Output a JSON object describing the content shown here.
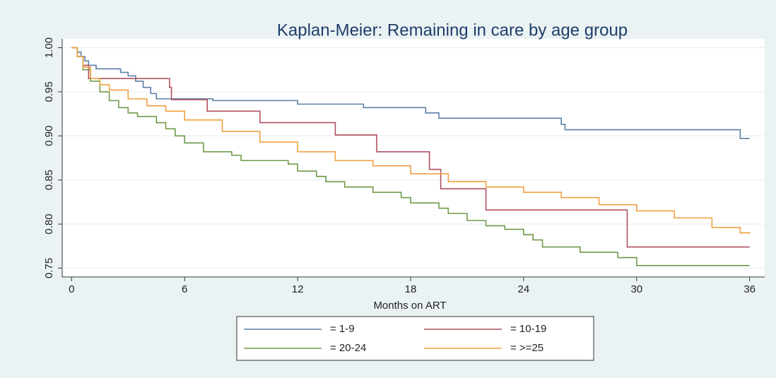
{
  "chart_data": {
    "type": "line",
    "step": true,
    "title": "Kaplan-Meier: Remaining in care by age group",
    "x_label": "Months on ART",
    "xlim": [
      -0.5,
      36.8
    ],
    "xticks": [
      0,
      6,
      12,
      18,
      24,
      30,
      36
    ],
    "ylim": [
      0.74,
      1.01
    ],
    "yticks": [
      0.75,
      {
        "value": 0.8,
        "label": "0.80"
      },
      0.85,
      {
        "value": 0.9,
        "label": "0.90"
      },
      0.95,
      {
        "value": 1,
        "label": "1.00"
      }
    ],
    "grid": true,
    "series": [
      {
        "name": "= 1-9",
        "color": "#5b7fa6",
        "x": [
          0,
          0.3,
          0.5,
          0.7,
          0.9,
          1.3,
          2.6,
          3,
          3.4,
          3.8,
          4.2,
          4.5,
          7.5,
          12,
          15.5,
          18.8,
          19.5,
          26,
          26.2,
          35.5,
          36
        ],
        "values": [
          1,
          0.995,
          0.99,
          0.985,
          0.98,
          0.976,
          0.972,
          0.968,
          0.962,
          0.955,
          0.948,
          0.942,
          0.94,
          0.936,
          0.932,
          0.926,
          0.92,
          0.913,
          0.907,
          0.897,
          0.897
        ]
      },
      {
        "name": "= 10-19",
        "color": "#b0505e",
        "x": [
          0,
          0.3,
          0.6,
          0.9,
          5.2,
          5.3,
          7.2,
          10,
          14,
          16.2,
          19,
          19.6,
          22,
          29.5,
          36
        ],
        "values": [
          1,
          0.99,
          0.98,
          0.965,
          0.955,
          0.941,
          0.928,
          0.915,
          0.901,
          0.882,
          0.862,
          0.84,
          0.816,
          0.774,
          0.774
        ]
      },
      {
        "name": "= 20-24",
        "color": "#6e9a4a",
        "x": [
          0,
          0.3,
          0.6,
          1,
          1.5,
          2,
          2.5,
          3,
          3.5,
          4.5,
          5,
          5.5,
          6,
          7,
          8.5,
          9,
          11.5,
          12,
          13,
          13.5,
          14.5,
          16,
          17.5,
          18,
          19.5,
          20,
          21,
          22,
          23,
          24,
          24.5,
          25,
          27,
          29,
          30,
          36
        ],
        "values": [
          1,
          0.99,
          0.975,
          0.962,
          0.95,
          0.94,
          0.932,
          0.926,
          0.922,
          0.915,
          0.908,
          0.9,
          0.892,
          0.882,
          0.878,
          0.872,
          0.868,
          0.86,
          0.854,
          0.848,
          0.842,
          0.836,
          0.83,
          0.824,
          0.818,
          0.812,
          0.804,
          0.798,
          0.794,
          0.788,
          0.782,
          0.774,
          0.768,
          0.762,
          0.753,
          0.753
        ]
      },
      {
        "name": "= >=25",
        "color": "#f0a040",
        "x": [
          0,
          0.3,
          0.6,
          1,
          1.5,
          2,
          3,
          4,
          5,
          6,
          8,
          10,
          12,
          14,
          16,
          18,
          20,
          22,
          24,
          26,
          28,
          30,
          32,
          34,
          35.5,
          36
        ],
        "values": [
          1,
          0.99,
          0.978,
          0.965,
          0.958,
          0.952,
          0.942,
          0.934,
          0.928,
          0.918,
          0.905,
          0.893,
          0.882,
          0.872,
          0.866,
          0.857,
          0.848,
          0.842,
          0.836,
          0.83,
          0.822,
          0.815,
          0.807,
          0.796,
          0.79,
          0.789
        ]
      }
    ]
  }
}
